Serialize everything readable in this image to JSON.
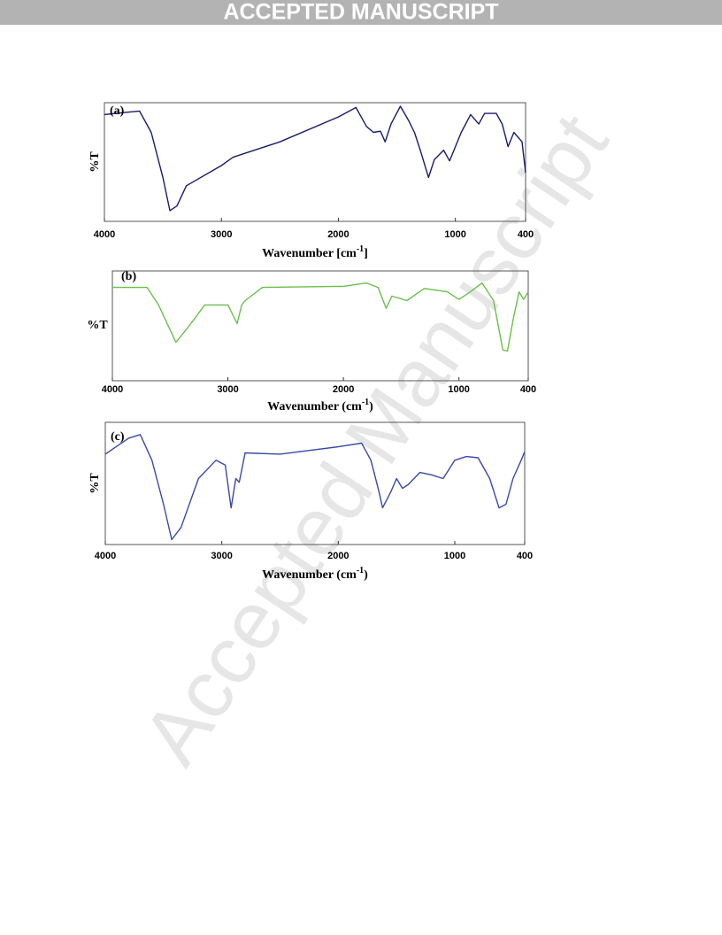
{
  "header": "ACCEPTED MANUSCRIPT",
  "watermark": "Accepted Manuscript",
  "chart_data": [
    {
      "type": "line",
      "annotation": "(a)",
      "y_label": "%T",
      "x_label": "Wavenumber [cm",
      "x_label_sup": "-1",
      "x_label_end": "]",
      "xlim": [
        4000,
        400
      ],
      "xticks": [
        4000,
        3000,
        2000,
        1000,
        400
      ],
      "ylim": [
        0,
        100
      ],
      "series": [
        {
          "color": "#1a1a6e",
          "x": [
            4000,
            3800,
            3700,
            3600,
            3500,
            3440,
            3380,
            3300,
            3000,
            2900,
            2500,
            2000,
            1850,
            1760,
            1700,
            1640,
            1600,
            1550,
            1470,
            1400,
            1350,
            1300,
            1230,
            1180,
            1100,
            1050,
            950,
            870,
            800,
            750,
            650,
            600,
            550,
            500,
            430,
            400
          ],
          "values": [
            90,
            92,
            93,
            75,
            37,
            9,
            13,
            30,
            47,
            54,
            67,
            88,
            96,
            80,
            75,
            76,
            67,
            82,
            97,
            85,
            75,
            60,
            37,
            52,
            60,
            51,
            75,
            90,
            82,
            91,
            91,
            82,
            63,
            75,
            67,
            41
          ]
        }
      ]
    },
    {
      "type": "line",
      "annotation": "(b)",
      "y_label": "%T",
      "x_label": "Wavenumber (cm",
      "x_label_sup": "-1",
      "x_label_end": ")",
      "xlim": [
        4000,
        400
      ],
      "xticks": [
        4000,
        3000,
        2000,
        1000,
        400
      ],
      "ylim": [
        0,
        100
      ],
      "series": [
        {
          "color": "#6abf4b",
          "x": [
            4000,
            3700,
            3600,
            3450,
            3350,
            3200,
            3000,
            2920,
            2880,
            2850,
            2700,
            2000,
            1800,
            1700,
            1630,
            1580,
            1450,
            1300,
            1100,
            1000,
            900,
            800,
            700,
            620,
            580,
            530,
            480,
            440,
            400
          ],
          "values": [
            85,
            85,
            69,
            35,
            48,
            69,
            69,
            52,
            69,
            73,
            85,
            86,
            89,
            85,
            66,
            77,
            73,
            84,
            81,
            74,
            81,
            89,
            73,
            28,
            27,
            56,
            81,
            74,
            81
          ]
        }
      ]
    },
    {
      "type": "line",
      "annotation": "(c)",
      "y_label": "%T",
      "x_label": "Wavenumber (cm",
      "x_label_sup": "-1",
      "x_label_end": ")",
      "xlim": [
        4000,
        400
      ],
      "xticks": [
        4000,
        3000,
        2000,
        1000,
        400
      ],
      "ylim": [
        0,
        100
      ],
      "series": [
        {
          "color": "#3a48a8",
          "x": [
            4000,
            3800,
            3700,
            3600,
            3500,
            3430,
            3350,
            3200,
            3050,
            2970,
            2920,
            2880,
            2850,
            2800,
            2500,
            2000,
            1800,
            1720,
            1650,
            1620,
            1550,
            1500,
            1450,
            1400,
            1300,
            1200,
            1100,
            1000,
            900,
            800,
            700,
            620,
            560,
            500,
            430,
            400
          ],
          "values": [
            74,
            87,
            90,
            69,
            33,
            4,
            14,
            54,
            69,
            65,
            30,
            54,
            51,
            75,
            74,
            80,
            83,
            69,
            43,
            30,
            43,
            54,
            46,
            49,
            59,
            57,
            54,
            69,
            72,
            71,
            54,
            30,
            33,
            54,
            69,
            76
          ]
        }
      ]
    }
  ]
}
